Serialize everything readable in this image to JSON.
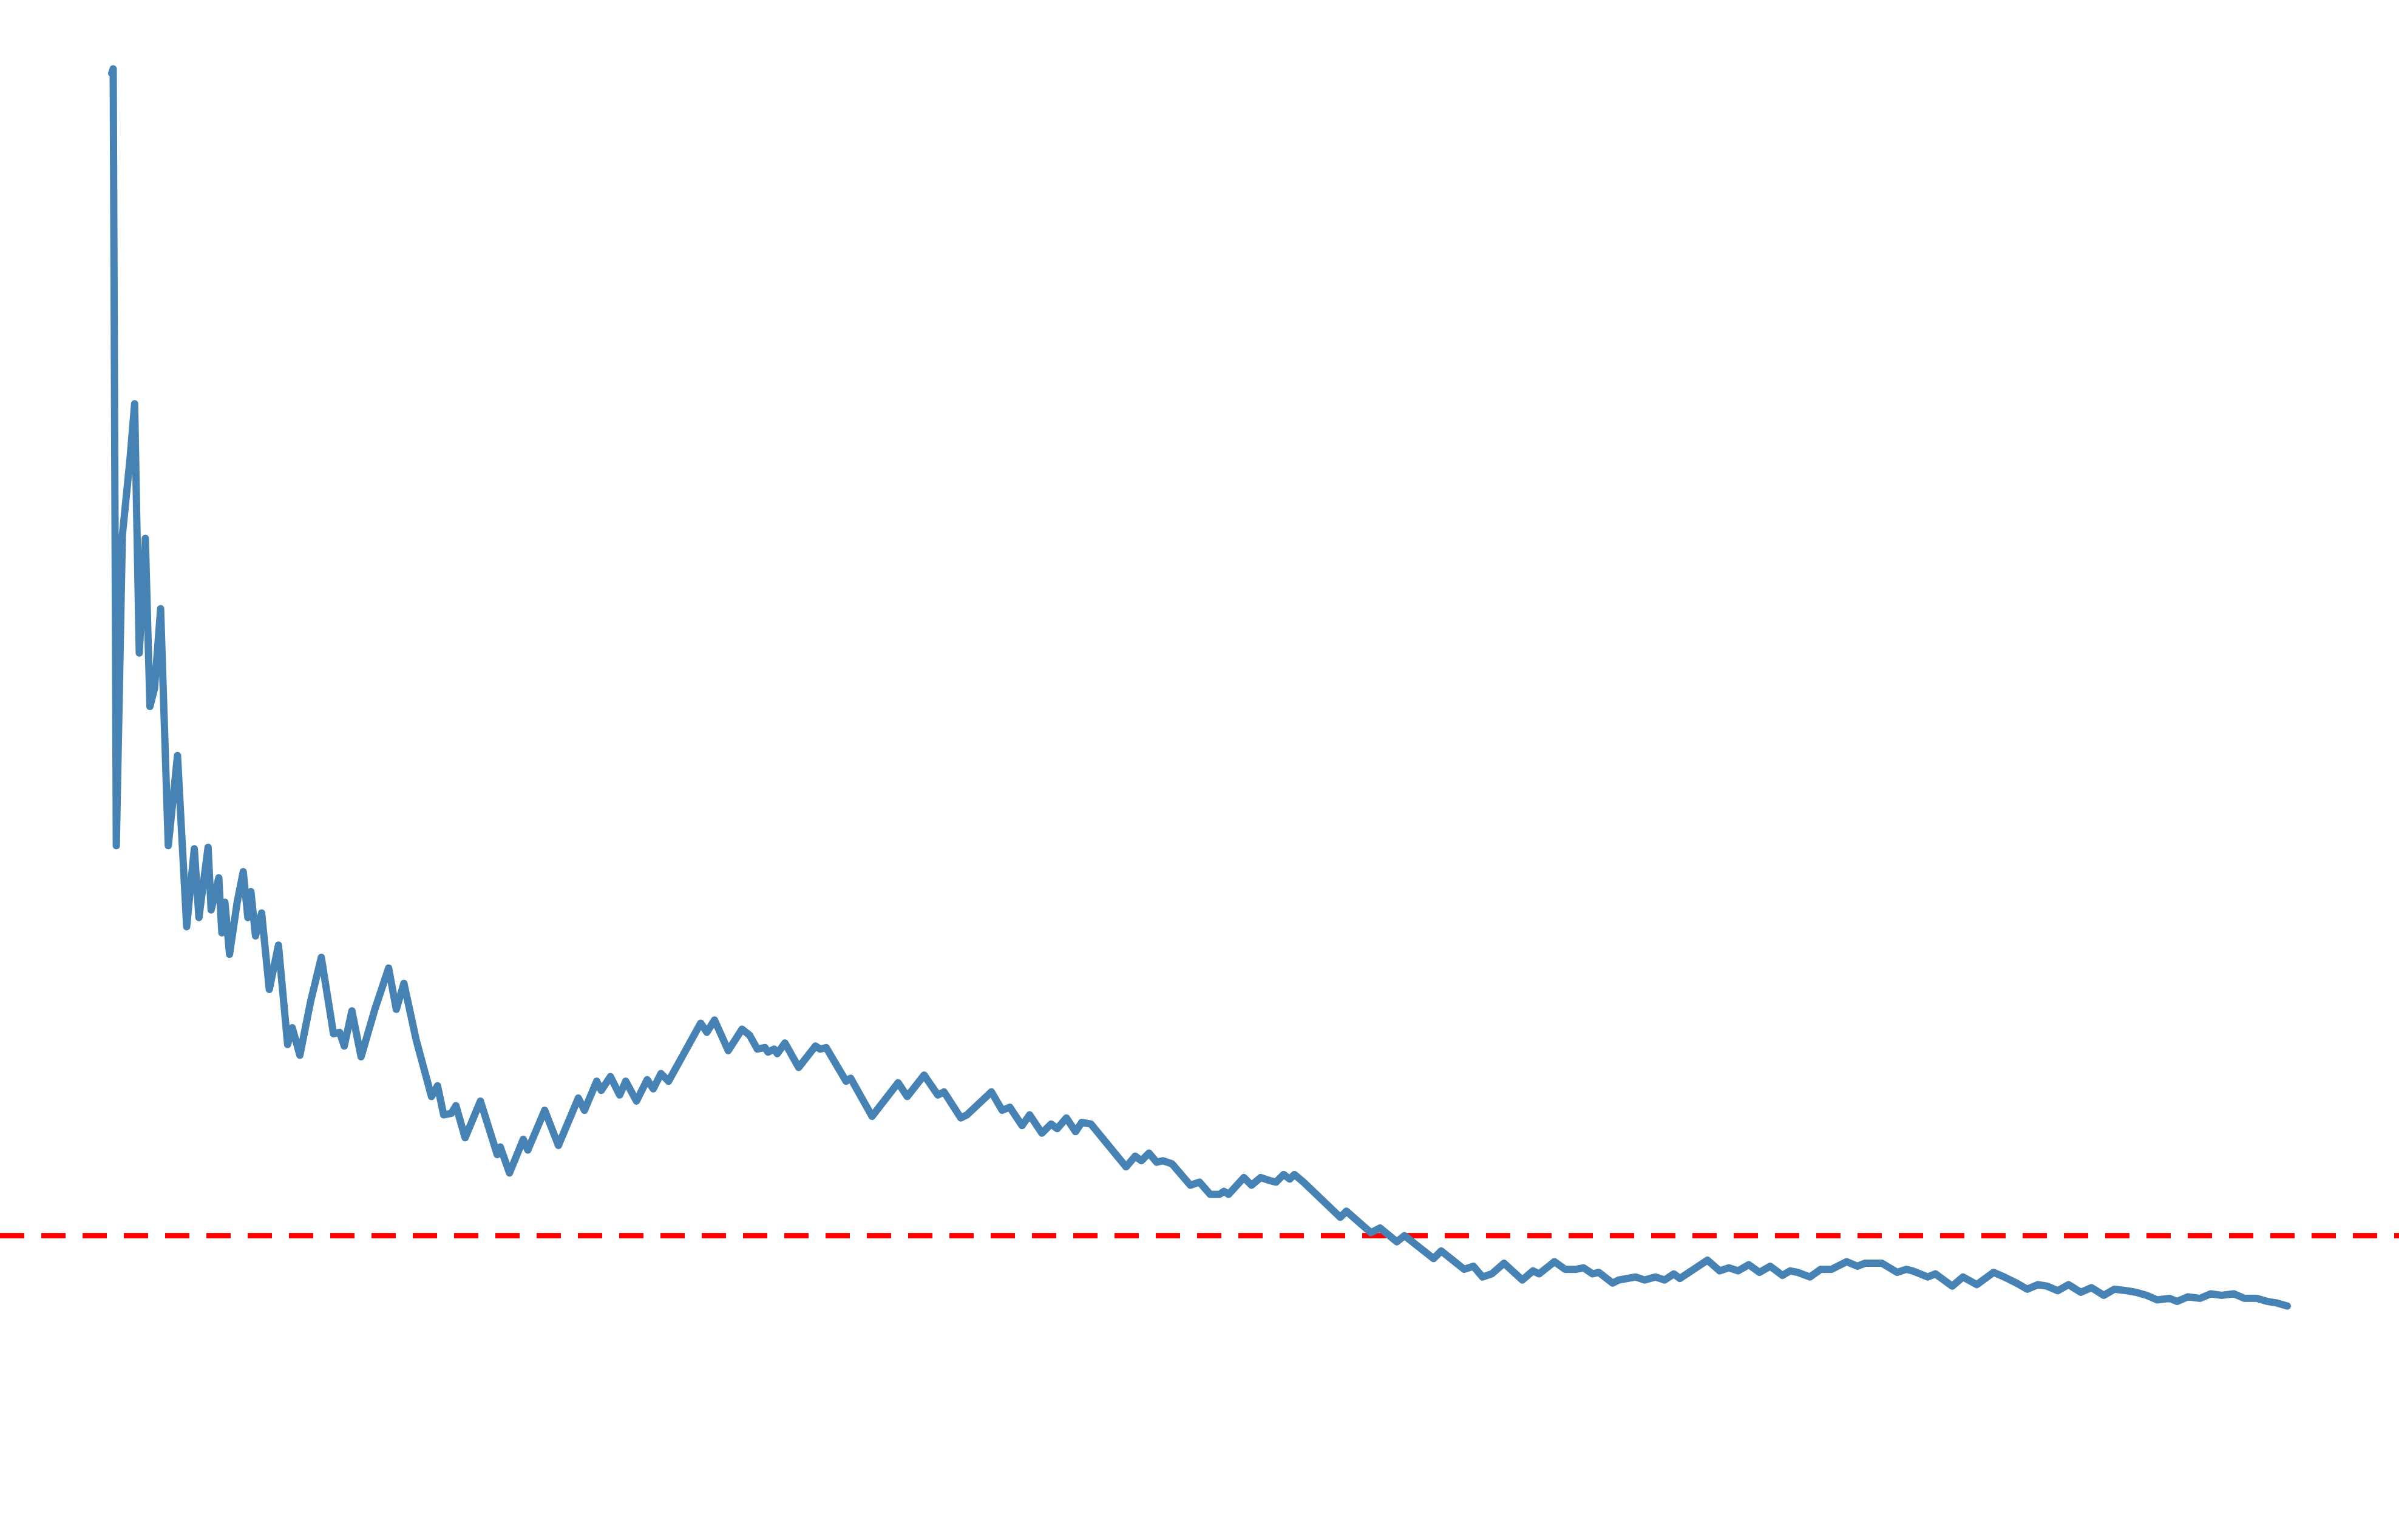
{
  "chart_data": {
    "type": "line",
    "x": [
      73,
      74,
      76,
      80,
      85,
      88,
      91,
      95,
      98,
      101,
      105,
      110,
      116,
      122,
      127,
      130,
      136,
      138,
      143,
      145,
      147,
      150,
      155,
      159,
      162,
      164,
      167,
      171,
      176,
      182,
      188,
      191,
      196,
      203,
      210,
      218,
      222,
      225,
      230,
      236,
      245,
      254,
      259,
      264,
      272,
      282,
      286,
      290,
      295,
      298,
      304,
      314,
      325,
      327,
      333,
      342,
      345,
      356,
      365,
      378,
      382,
      390,
      393,
      399,
      405,
      409,
      416,
      423,
      427,
      432,
      437,
      458,
      462,
      467,
      476,
      485,
      490,
      495,
      500,
      502,
      506,
      508,
      513,
      522,
      533,
      536,
      540,
      553,
      556,
      570,
      587,
      593,
      604,
      613,
      617,
      628,
      632,
      648,
      655,
      660,
      668,
      673,
      681,
      687,
      691,
      697,
      703,
      707,
      713,
      736,
      742,
      746,
      751,
      756,
      760,
      766,
      778,
      784,
      791,
      797,
      800,
      803,
      813,
      818,
      824,
      830,
      834,
      839,
      843,
      846,
      852,
      876,
      880,
      896,
      902,
      913,
      918,
      937,
      942,
      957,
      963,
      969,
      975,
      983,
      995,
      1002,
      1006,
      1016,
      1023,
      1030,
      1035,
      1041,
      1045,
      1054,
      1058,
      1069,
      1075,
      1082,
      1088,
      1094,
      1098,
      1104,
      1116,
      1124,
      1130,
      1136,
      1143,
      1150,
      1157,
      1165,
      1170,
      1175,
      1183,
      1190,
      1197,
      1207,
      1214,
      1219,
      1224,
      1230,
      1240,
      1246,
      1250,
      1260,
      1265,
      1276,
      1283,
      1292,
      1303,
      1310,
      1318,
      1325,
      1332,
      1338,
      1345,
      1352,
      1360,
      1367,
      1375,
      1382,
      1390,
      1396,
      1403,
      1410,
      1418,
      1423,
      1430,
      1438,
      1445,
      1452,
      1460,
      1467,
      1475,
      1482,
      1488,
      1495
    ],
    "values": [
      959,
      962,
      454,
      657,
      707,
      743,
      580,
      655,
      545,
      557,
      609,
      454,
      513,
      401,
      452,
      407,
      453,
      412,
      433,
      397,
      417,
      383,
      417,
      437,
      407,
      424,
      395,
      410,
      360,
      389,
      324,
      335,
      317,
      352,
      381,
      331,
      332,
      323,
      346,
      316,
      347,
      374,
      347,
      364,
      327,
      290,
      297,
      278,
      279,
      284,
      263,
      287,
      252,
      257,
      240,
      262,
      255,
      281,
      258,
      289,
      281,
      300,
      294,
      303,
      291,
      300,
      287,
      301,
      295,
      305,
      300,
      338,
      332,
      340,
      320,
      334,
      330,
      321,
      322,
      319,
      321,
      318,
      325,
      309,
      323,
      321,
      322,
      300,
      302,
      277,
      299,
      290,
      304,
      291,
      293,
      276,
      278,
      293,
      281,
      283,
      271,
      278,
      266,
      272,
      269,
      276,
      267,
      273,
      272,
      244,
      251,
      248,
      253,
      247,
      248,
      246,
      232,
      234,
      226,
      226,
      228,
      226,
      237,
      232,
      237,
      235,
      234,
      239,
      236,
      239,
      234,
      211,
      215,
      201,
      204,
      195,
      199,
      184,
      189,
      177,
      179,
      172,
      174,
      181,
      170,
      176,
      174,
      182,
      177,
      177,
      178,
      174,
      175,
      168,
      170,
      172,
      170,
      172,
      170,
      174,
      171,
      175,
      183,
      176,
      178,
      176,
      180,
      175,
      179,
      173,
      176,
      175,
      172,
      177,
      177,
      182,
      179,
      181,
      181,
      181,
      175,
      177,
      176,
      172,
      174,
      166,
      172,
      167,
      175,
      172,
      168,
      164,
      167,
      166,
      163,
      167,
      162,
      165,
      160,
      164,
      163,
      162,
      160,
      157,
      158,
      156,
      159,
      158,
      161,
      160,
      161,
      158,
      158,
      156,
      155,
      153
    ],
    "color": "#4682b4",
    "xlim": [
      0,
      1568
    ],
    "ylim": [
      0,
      1007
    ],
    "reference_line": {
      "y": 199,
      "color": "#ff0000",
      "style": "dashed"
    }
  }
}
